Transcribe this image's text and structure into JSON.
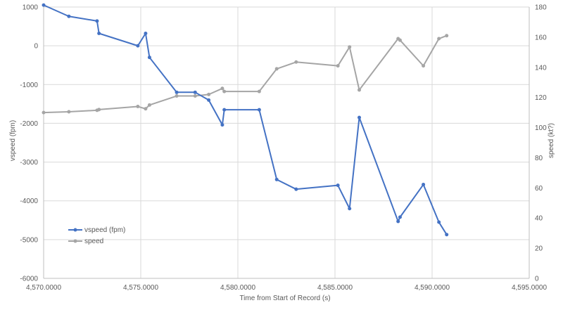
{
  "chart_data": {
    "type": "line",
    "title": "",
    "xlabel": "Time from Start of Record (s)",
    "ylabel_left": "vspeed (fpm)",
    "ylabel_right": "speed (kt?)",
    "xlim": [
      4570,
      4595
    ],
    "x_ticks": [
      4570,
      4575,
      4580,
      4585,
      4590,
      4595
    ],
    "x_tick_labels": [
      "4,570.0000",
      "4,575.0000",
      "4,580.0000",
      "4,585.0000",
      "4,590.0000",
      "4,595.0000"
    ],
    "ylim_left": [
      -6000,
      1000
    ],
    "y_ticks_left": [
      -6000,
      -5000,
      -4000,
      -3000,
      -2000,
      -1000,
      0,
      1000
    ],
    "y_tick_labels_left": [
      "-6000",
      "-5000",
      "-4000",
      "-3000",
      "-2000",
      "-1000",
      "0",
      "1000"
    ],
    "ylim_right": [
      0,
      180
    ],
    "y_ticks_right": [
      0,
      20,
      40,
      60,
      80,
      100,
      120,
      140,
      160,
      180
    ],
    "y_tick_labels_right": [
      "0",
      "20",
      "40",
      "60",
      "80",
      "100",
      "120",
      "140",
      "160",
      "180"
    ],
    "grid": "horizontal",
    "legend_position": "bottom-left",
    "series": [
      {
        "name": "vspeed (fpm)",
        "axis": "left",
        "color": "#4472C4",
        "x": [
          4570.0,
          4571.3,
          4572.75,
          4572.85,
          4574.85,
          4575.25,
          4575.45,
          4576.85,
          4577.8,
          4578.5,
          4579.2,
          4579.3,
          4581.1,
          4582.0,
          4583.0,
          4585.15,
          4585.75,
          4586.25,
          4588.25,
          4588.35,
          4589.55,
          4590.35,
          4590.75
        ],
        "y": [
          1050,
          760,
          640,
          320,
          0,
          320,
          -300,
          -1200,
          -1200,
          -1400,
          -2040,
          -1650,
          -1650,
          -3450,
          -3700,
          -3600,
          -4200,
          -1850,
          -4530,
          -4420,
          -3580,
          -4550,
          -4870
        ]
      },
      {
        "name": "speed",
        "axis": "right",
        "color": "#A5A5A5",
        "x": [
          4570.0,
          4571.3,
          4572.75,
          4572.85,
          4574.85,
          4575.25,
          4575.45,
          4576.85,
          4577.8,
          4578.5,
          4579.2,
          4579.3,
          4581.1,
          4582.0,
          4583.0,
          4585.15,
          4585.75,
          4586.25,
          4588.25,
          4588.35,
          4589.55,
          4590.35,
          4590.75
        ],
        "y": [
          110,
          110.5,
          111.5,
          112,
          114,
          112.5,
          115,
          121,
          121,
          122,
          126,
          124,
          124,
          139,
          143.5,
          141,
          153.5,
          125,
          159,
          158,
          141,
          159,
          161
        ]
      }
    ]
  }
}
